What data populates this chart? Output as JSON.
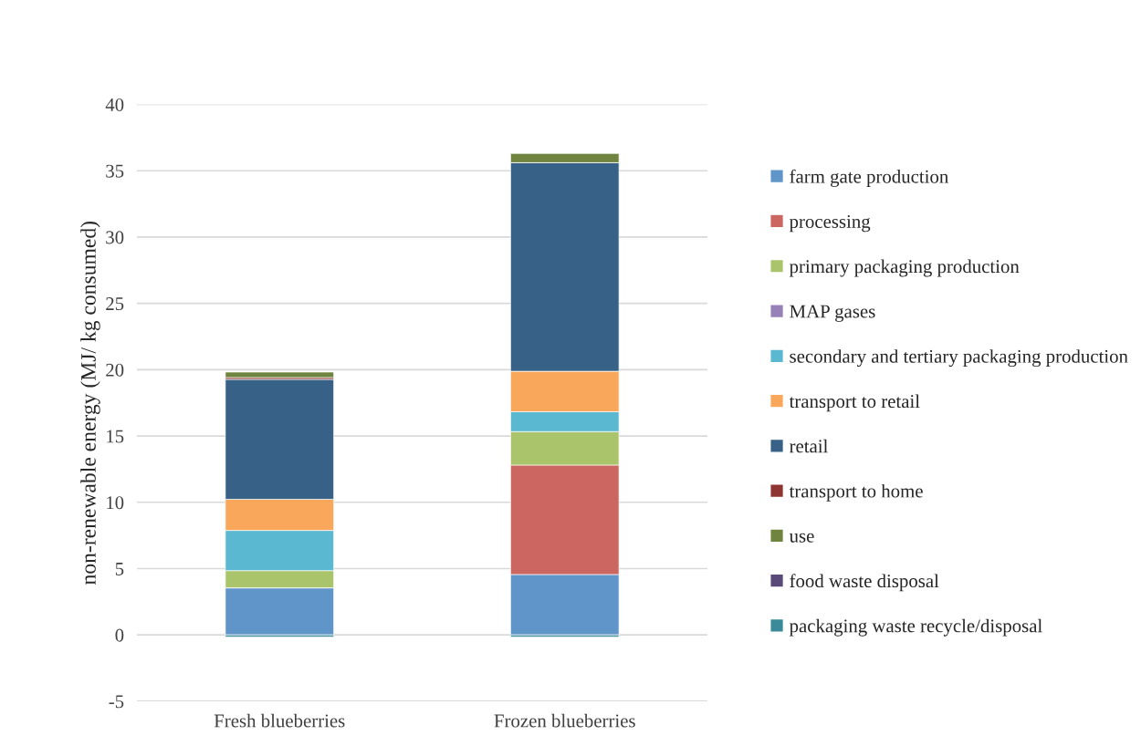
{
  "chart_data": {
    "type": "bar",
    "stacked": true,
    "ylabel": "non-renewable energy (MJ/ kg consumed)",
    "categories": [
      "Fresh blueberries",
      "Frozen blueberries"
    ],
    "series": [
      {
        "name": "farm gate production",
        "color": "#5f95c9",
        "values": [
          3.55,
          4.56
        ]
      },
      {
        "name": "processing",
        "color": "#cc6660",
        "values": [
          0,
          8.25
        ]
      },
      {
        "name": "primary packaging production",
        "color": "#aac46c",
        "values": [
          1.3,
          2.52
        ]
      },
      {
        "name": "MAP gases",
        "color": "#9880b8",
        "values": [
          0,
          0
        ]
      },
      {
        "name": "secondary and tertiary packaging production",
        "color": "#5ab8d0",
        "values": [
          3.03,
          1.5
        ]
      },
      {
        "name": "transport to retail",
        "color": "#f9a75a",
        "values": [
          2.35,
          3.05
        ]
      },
      {
        "name": "retail",
        "color": "#376186",
        "values": [
          9.04,
          15.73
        ]
      },
      {
        "name": "transport to home",
        "color": "#8e3431",
        "values": [
          0.14,
          null
        ]
      },
      {
        "name": "use",
        "color": "#6f843e",
        "values": [
          0.41,
          0.69
        ]
      },
      {
        "name": "food waste disposal",
        "color": "#5a4a7a",
        "values": [
          0,
          0
        ]
      },
      {
        "name": "packaging waste recycle/disposal",
        "color": "#3b8a9a",
        "values": [
          -0.15,
          -0.15
        ]
      }
    ],
    "ylim": [
      -5,
      40
    ],
    "yticks": [
      -5,
      0,
      5,
      10,
      15,
      20,
      25,
      30,
      35,
      40
    ],
    "grid": "y",
    "legend": "right"
  }
}
